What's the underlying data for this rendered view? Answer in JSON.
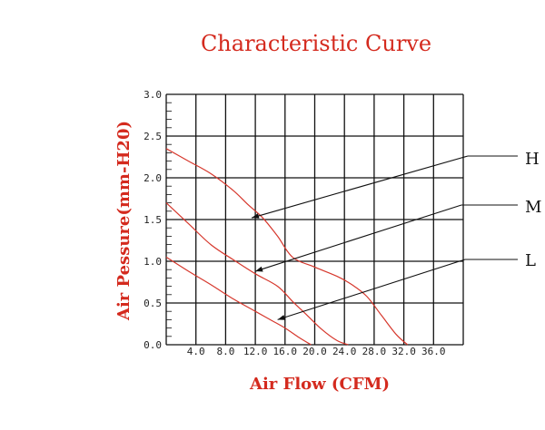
{
  "chart_data": {
    "type": "line",
    "title": "Characteristic Curve",
    "xlabel": "Air Flow (CFM)",
    "ylabel": "Air Pessure(mm-H20)",
    "xlim": [
      0,
      40
    ],
    "ylim": [
      0,
      3.0
    ],
    "x_ticks": [
      4,
      8,
      12,
      16,
      20,
      24,
      28,
      32,
      36
    ],
    "x_tick_labels": [
      "4.0",
      "8.0",
      "12.0",
      "16.0",
      "20.0",
      "24.0",
      "28.0",
      "32.0",
      "36.0"
    ],
    "y_ticks": [
      0,
      0.5,
      1.0,
      1.5,
      2.0,
      2.5,
      3.0
    ],
    "y_tick_labels": [
      "0.0",
      "0.5",
      "1.0",
      "1.5",
      "2.0",
      "2.5",
      "3.0"
    ],
    "grid": true,
    "series": [
      {
        "name": "H",
        "x": [
          0,
          3,
          6,
          9,
          11,
          13,
          15,
          17,
          20,
          23,
          25,
          27,
          29,
          31,
          32.5
        ],
        "y": [
          2.35,
          2.2,
          2.05,
          1.85,
          1.68,
          1.52,
          1.3,
          1.05,
          0.93,
          0.82,
          0.72,
          0.58,
          0.35,
          0.12,
          0.0
        ],
        "pointer_at": [
          11.5,
          1.52
        ]
      },
      {
        "name": "M",
        "x": [
          0,
          3,
          6,
          9,
          12,
          15,
          17,
          19,
          21,
          23,
          24.5
        ],
        "y": [
          1.7,
          1.45,
          1.2,
          1.02,
          0.85,
          0.7,
          0.52,
          0.35,
          0.18,
          0.05,
          0.0
        ],
        "pointer_at": [
          12,
          0.88
        ]
      },
      {
        "name": "L",
        "x": [
          0,
          3,
          6,
          9,
          12,
          14,
          16,
          18,
          19.5
        ],
        "y": [
          1.05,
          0.88,
          0.72,
          0.55,
          0.4,
          0.3,
          0.2,
          0.08,
          0.0
        ],
        "pointer_at": [
          15,
          0.3
        ]
      }
    ],
    "legend": {
      "placement": "right",
      "labels": [
        "H",
        "M",
        "L"
      ]
    }
  }
}
